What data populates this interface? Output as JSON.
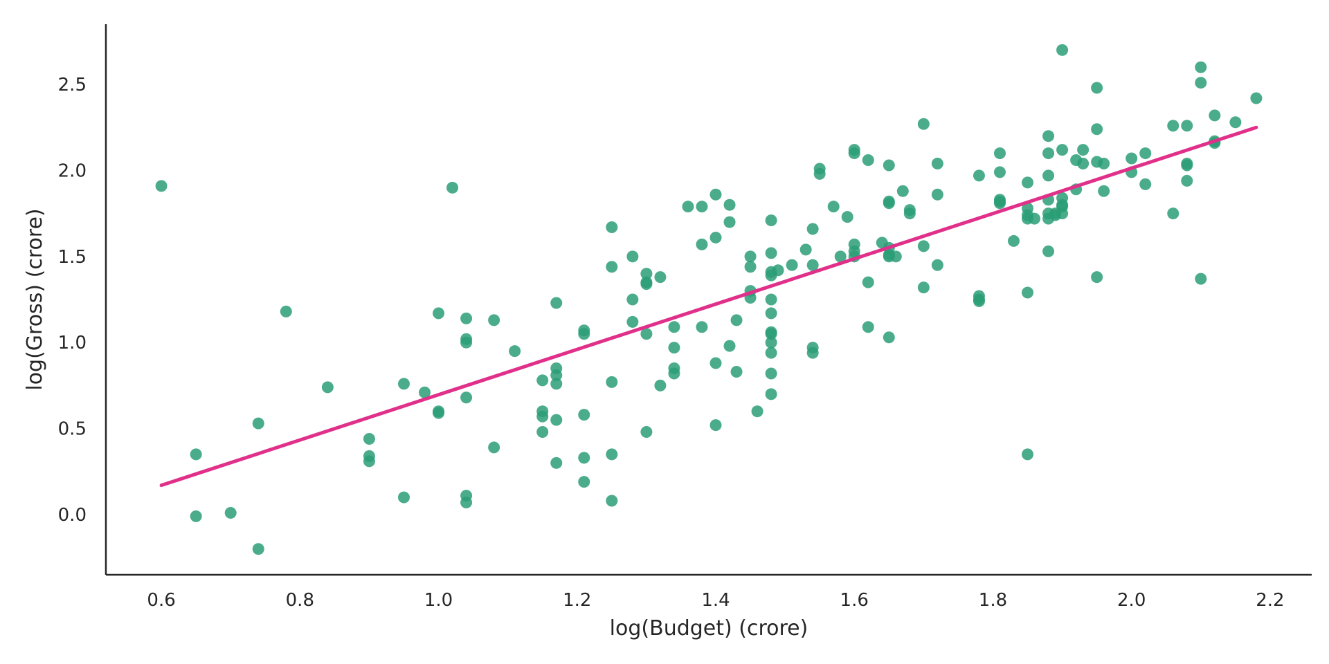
{
  "chart_data": {
    "type": "scatter",
    "xlabel": "log(Budget) (crore)",
    "ylabel": "log(Gross) (crore)",
    "xlim": [
      0.52,
      2.26
    ],
    "ylim": [
      -0.35,
      2.85
    ],
    "x_ticks": [
      0.6,
      0.8,
      1.0,
      1.2,
      1.4,
      1.6,
      1.8,
      2.0,
      2.2
    ],
    "x_tick_labels": [
      "0.6",
      "0.8",
      "1.0",
      "1.2",
      "1.4",
      "1.6",
      "1.8",
      "2.0",
      "2.2"
    ],
    "y_ticks": [
      0.0,
      0.5,
      1.0,
      1.5,
      2.0,
      2.5
    ],
    "y_tick_labels": [
      "0.0",
      "0.5",
      "1.0",
      "1.5",
      "2.0",
      "2.5"
    ],
    "grid": false,
    "colors": {
      "points": "#2a9d76",
      "fit_line": "#e0308a",
      "axis": "#262626"
    },
    "fit_line": {
      "x": [
        0.6,
        2.18
      ],
      "y": [
        0.17,
        2.25
      ]
    },
    "points": [
      [
        0.6,
        1.91
      ],
      [
        0.65,
        0.35
      ],
      [
        0.65,
        -0.01
      ],
      [
        0.7,
        0.01
      ],
      [
        0.74,
        0.53
      ],
      [
        0.74,
        -0.2
      ],
      [
        0.78,
        1.18
      ],
      [
        0.84,
        0.74
      ],
      [
        0.9,
        0.44
      ],
      [
        0.9,
        0.34
      ],
      [
        0.9,
        0.31
      ],
      [
        0.95,
        0.76
      ],
      [
        0.95,
        0.1
      ],
      [
        0.98,
        0.71
      ],
      [
        1.0,
        1.17
      ],
      [
        1.0,
        0.6
      ],
      [
        1.0,
        0.59
      ],
      [
        1.02,
        1.9
      ],
      [
        1.04,
        1.14
      ],
      [
        1.04,
        1.02
      ],
      [
        1.04,
        1.0
      ],
      [
        1.04,
        0.68
      ],
      [
        1.04,
        0.11
      ],
      [
        1.04,
        0.07
      ],
      [
        1.08,
        1.13
      ],
      [
        1.08,
        0.39
      ],
      [
        1.11,
        0.95
      ],
      [
        1.15,
        0.78
      ],
      [
        1.15,
        0.6
      ],
      [
        1.15,
        0.57
      ],
      [
        1.15,
        0.48
      ],
      [
        1.17,
        1.23
      ],
      [
        1.17,
        0.85
      ],
      [
        1.17,
        0.81
      ],
      [
        1.17,
        0.76
      ],
      [
        1.17,
        0.55
      ],
      [
        1.17,
        0.3
      ],
      [
        1.21,
        1.07
      ],
      [
        1.21,
        1.05
      ],
      [
        1.21,
        0.58
      ],
      [
        1.21,
        0.33
      ],
      [
        1.21,
        0.19
      ],
      [
        1.25,
        1.67
      ],
      [
        1.25,
        1.44
      ],
      [
        1.25,
        0.77
      ],
      [
        1.25,
        0.35
      ],
      [
        1.25,
        0.08
      ],
      [
        1.28,
        1.5
      ],
      [
        1.28,
        1.25
      ],
      [
        1.28,
        1.12
      ],
      [
        1.3,
        1.4
      ],
      [
        1.3,
        1.35
      ],
      [
        1.3,
        1.34
      ],
      [
        1.3,
        1.05
      ],
      [
        1.3,
        0.48
      ],
      [
        1.32,
        1.38
      ],
      [
        1.32,
        0.75
      ],
      [
        1.34,
        1.09
      ],
      [
        1.34,
        0.97
      ],
      [
        1.34,
        0.85
      ],
      [
        1.34,
        0.82
      ],
      [
        1.36,
        1.79
      ],
      [
        1.38,
        1.79
      ],
      [
        1.38,
        1.57
      ],
      [
        1.38,
        1.09
      ],
      [
        1.4,
        1.86
      ],
      [
        1.4,
        1.61
      ],
      [
        1.4,
        0.88
      ],
      [
        1.4,
        0.52
      ],
      [
        1.42,
        1.8
      ],
      [
        1.42,
        1.7
      ],
      [
        1.42,
        0.98
      ],
      [
        1.43,
        1.13
      ],
      [
        1.43,
        0.83
      ],
      [
        1.45,
        1.5
      ],
      [
        1.45,
        1.44
      ],
      [
        1.45,
        1.3
      ],
      [
        1.45,
        1.26
      ],
      [
        1.46,
        0.6
      ],
      [
        1.48,
        1.71
      ],
      [
        1.48,
        1.52
      ],
      [
        1.48,
        1.41
      ],
      [
        1.48,
        1.39
      ],
      [
        1.48,
        1.25
      ],
      [
        1.48,
        1.17
      ],
      [
        1.48,
        1.06
      ],
      [
        1.48,
        1.05
      ],
      [
        1.48,
        1.0
      ],
      [
        1.48,
        0.94
      ],
      [
        1.48,
        0.82
      ],
      [
        1.48,
        0.7
      ],
      [
        1.49,
        1.42
      ],
      [
        1.51,
        1.45
      ],
      [
        1.53,
        1.54
      ],
      [
        1.54,
        1.66
      ],
      [
        1.54,
        1.45
      ],
      [
        1.54,
        0.97
      ],
      [
        1.54,
        0.94
      ],
      [
        1.55,
        2.01
      ],
      [
        1.55,
        1.98
      ],
      [
        1.57,
        1.79
      ],
      [
        1.58,
        1.5
      ],
      [
        1.59,
        1.73
      ],
      [
        1.6,
        2.12
      ],
      [
        1.6,
        2.1
      ],
      [
        1.6,
        1.57
      ],
      [
        1.6,
        1.53
      ],
      [
        1.6,
        1.5
      ],
      [
        1.62,
        2.06
      ],
      [
        1.62,
        1.35
      ],
      [
        1.62,
        1.09
      ],
      [
        1.64,
        1.58
      ],
      [
        1.65,
        2.03
      ],
      [
        1.65,
        1.82
      ],
      [
        1.65,
        1.81
      ],
      [
        1.65,
        1.55
      ],
      [
        1.65,
        1.51
      ],
      [
        1.65,
        1.5
      ],
      [
        1.65,
        1.03
      ],
      [
        1.66,
        1.5
      ],
      [
        1.67,
        1.88
      ],
      [
        1.68,
        1.77
      ],
      [
        1.68,
        1.75
      ],
      [
        1.7,
        2.27
      ],
      [
        1.7,
        1.56
      ],
      [
        1.7,
        1.32
      ],
      [
        1.72,
        2.04
      ],
      [
        1.72,
        1.86
      ],
      [
        1.72,
        1.45
      ],
      [
        1.78,
        1.97
      ],
      [
        1.78,
        1.27
      ],
      [
        1.78,
        1.25
      ],
      [
        1.78,
        1.24
      ],
      [
        1.81,
        2.1
      ],
      [
        1.81,
        1.99
      ],
      [
        1.81,
        1.83
      ],
      [
        1.81,
        1.82
      ],
      [
        1.81,
        1.81
      ],
      [
        1.83,
        1.59
      ],
      [
        1.85,
        1.93
      ],
      [
        1.85,
        1.78
      ],
      [
        1.85,
        1.74
      ],
      [
        1.85,
        1.72
      ],
      [
        1.85,
        1.29
      ],
      [
        1.85,
        0.35
      ],
      [
        1.86,
        1.72
      ],
      [
        1.88,
        2.2
      ],
      [
        1.88,
        2.1
      ],
      [
        1.88,
        1.97
      ],
      [
        1.88,
        1.83
      ],
      [
        1.88,
        1.75
      ],
      [
        1.88,
        1.72
      ],
      [
        1.88,
        1.53
      ],
      [
        1.89,
        1.75
      ],
      [
        1.89,
        1.74
      ],
      [
        1.9,
        1.75
      ],
      [
        1.9,
        2.7
      ],
      [
        1.9,
        2.12
      ],
      [
        1.9,
        1.84
      ],
      [
        1.9,
        1.8
      ],
      [
        1.9,
        1.79
      ],
      [
        1.92,
        2.06
      ],
      [
        1.92,
        1.89
      ],
      [
        1.93,
        2.12
      ],
      [
        1.93,
        2.04
      ],
      [
        1.95,
        2.48
      ],
      [
        1.95,
        2.24
      ],
      [
        1.95,
        2.05
      ],
      [
        1.95,
        1.38
      ],
      [
        1.96,
        2.04
      ],
      [
        1.96,
        1.88
      ],
      [
        2.0,
        2.07
      ],
      [
        2.0,
        1.99
      ],
      [
        2.02,
        2.1
      ],
      [
        2.02,
        1.92
      ],
      [
        2.06,
        2.26
      ],
      [
        2.06,
        1.75
      ],
      [
        2.08,
        2.26
      ],
      [
        2.08,
        2.04
      ],
      [
        2.08,
        2.03
      ],
      [
        2.08,
        1.94
      ],
      [
        2.1,
        2.6
      ],
      [
        2.1,
        2.51
      ],
      [
        2.1,
        1.37
      ],
      [
        2.12,
        2.32
      ],
      [
        2.12,
        2.17
      ],
      [
        2.12,
        2.16
      ],
      [
        2.15,
        2.28
      ],
      [
        2.18,
        2.42
      ]
    ]
  }
}
